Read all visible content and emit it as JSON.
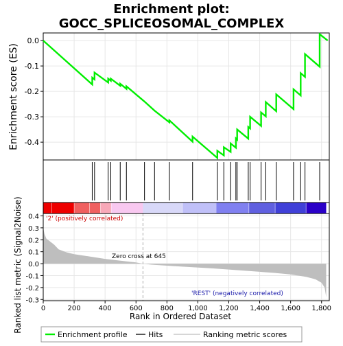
{
  "chart_data": {
    "type": "line",
    "title_line1": "Enrichment plot:",
    "title_line2": "GOCC_SPLICEOSOMAL_COMPLEX",
    "top_panel": {
      "ylabel": "Enrichment score (ES)",
      "ylim": [
        -0.47,
        0.03
      ],
      "yticks": [
        "0.0",
        "-0.1",
        "-0.2",
        "-0.3",
        "-0.4"
      ],
      "ytick_values": [
        0.0,
        -0.1,
        -0.2,
        -0.3,
        -0.4
      ],
      "grid": true
    },
    "bottom_panel": {
      "ylabel": "Ranked list metric (Signal2Noise)",
      "xlabel": "Rank in Ordered Dataset",
      "ylim": [
        -0.31,
        0.42
      ],
      "yticks": [
        "0.4",
        "0.3",
        "0.2",
        "0.1",
        "0.0",
        "-0.1",
        "-0.2",
        "-0.3"
      ],
      "ytick_values": [
        0.4,
        0.3,
        0.2,
        0.1,
        0.0,
        -0.1,
        -0.2,
        -0.3
      ],
      "grid": true,
      "annotations": {
        "positive": "'2' (positively correlated)",
        "negative": "'REST' (negatively correlated)",
        "zero_cross": "Zero cross at 645"
      },
      "zero_cross_rank": 645
    },
    "xlim": [
      0,
      1850
    ],
    "xticks": [
      "0",
      "200",
      "400",
      "600",
      "800",
      "1,000",
      "1,200",
      "1,400",
      "1,600",
      "1,800"
    ],
    "xtick_values": [
      0,
      200,
      400,
      600,
      800,
      1000,
      1200,
      1400,
      1600,
      1800
    ],
    "total_genes": 1830,
    "hit_ranks": [
      317,
      332,
      420,
      437,
      498,
      538,
      655,
      720,
      816,
      966,
      1126,
      1168,
      1212,
      1246,
      1254,
      1326,
      1338,
      1409,
      1439,
      1507,
      1619,
      1665,
      1693,
      1788
    ],
    "es_points": [
      [
        0,
        0.0
      ],
      [
        317,
        -0.173
      ],
      [
        317,
        -0.146
      ],
      [
        332,
        -0.153
      ],
      [
        332,
        -0.126
      ],
      [
        420,
        -0.165
      ],
      [
        420,
        -0.15
      ],
      [
        437,
        -0.158
      ],
      [
        437,
        -0.15
      ],
      [
        498,
        -0.178
      ],
      [
        498,
        -0.17
      ],
      [
        538,
        -0.19
      ],
      [
        538,
        -0.18
      ],
      [
        655,
        -0.24
      ],
      [
        720,
        -0.276
      ],
      [
        816,
        -0.322
      ],
      [
        816,
        -0.314
      ],
      [
        966,
        -0.398
      ],
      [
        966,
        -0.378
      ],
      [
        1126,
        -0.462
      ],
      [
        1126,
        -0.434
      ],
      [
        1168,
        -0.452
      ],
      [
        1168,
        -0.42
      ],
      [
        1212,
        -0.438
      ],
      [
        1212,
        -0.405
      ],
      [
        1246,
        -0.422
      ],
      [
        1246,
        -0.385
      ],
      [
        1254,
        -0.39
      ],
      [
        1254,
        -0.35
      ],
      [
        1326,
        -0.386
      ],
      [
        1326,
        -0.34
      ],
      [
        1338,
        -0.346
      ],
      [
        1338,
        -0.3
      ],
      [
        1409,
        -0.336
      ],
      [
        1409,
        -0.283
      ],
      [
        1439,
        -0.298
      ],
      [
        1439,
        -0.242
      ],
      [
        1507,
        -0.278
      ],
      [
        1507,
        -0.212
      ],
      [
        1619,
        -0.27
      ],
      [
        1619,
        -0.192
      ],
      [
        1665,
        -0.216
      ],
      [
        1665,
        -0.128
      ],
      [
        1693,
        -0.143
      ],
      [
        1693,
        -0.053
      ],
      [
        1788,
        -0.103
      ],
      [
        1788,
        0.025
      ],
      [
        1840,
        0.0
      ]
    ],
    "metric_curve": [
      [
        0,
        0.3
      ],
      [
        8,
        0.25
      ],
      [
        20,
        0.21
      ],
      [
        40,
        0.19
      ],
      [
        70,
        0.16
      ],
      [
        100,
        0.12
      ],
      [
        150,
        0.095
      ],
      [
        200,
        0.08
      ],
      [
        300,
        0.06
      ],
      [
        400,
        0.04
      ],
      [
        500,
        0.025
      ],
      [
        600,
        0.01
      ],
      [
        645,
        0.0
      ],
      [
        700,
        -0.008
      ],
      [
        900,
        -0.025
      ],
      [
        1100,
        -0.04
      ],
      [
        1300,
        -0.058
      ],
      [
        1500,
        -0.078
      ],
      [
        1600,
        -0.09
      ],
      [
        1700,
        -0.11
      ],
      [
        1760,
        -0.13
      ],
      [
        1800,
        -0.16
      ],
      [
        1820,
        -0.2
      ],
      [
        1830,
        -0.28
      ]
    ],
    "legend": {
      "entries": [
        "Enrichment profile",
        "Hits",
        "Ranking metric scores"
      ],
      "colors": [
        "#00ee00",
        "#000000",
        "#bebebe"
      ]
    },
    "colors": {
      "es_line": "#00ee00",
      "metric_fill": "#bebebe",
      "heatmap_stops": [
        "#ee0000",
        "#f06060",
        "#f8a8b8",
        "#f8c8f0",
        "#d8d8f8",
        "#c0c0f8",
        "#8080f0",
        "#6060e0",
        "#4040d8",
        "#2a00c8"
      ]
    }
  }
}
